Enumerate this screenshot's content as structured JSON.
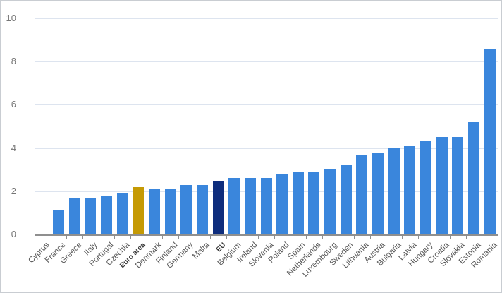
{
  "chart_data": {
    "type": "bar",
    "title": "",
    "xlabel": "",
    "ylabel": "",
    "categories": [
      "Cyprus",
      "France",
      "Greece",
      "Italy",
      "Portugal",
      "Czechia",
      "Euro area",
      "Denmark",
      "Finland",
      "Germany",
      "Malta",
      "EU",
      "Belgium",
      "Ireland",
      "Slovenia",
      "Poland",
      "Spain",
      "Netherlands",
      "Luxembourg",
      "Sweden",
      "Lithuania",
      "Austria",
      "Bulgaria",
      "Latvia",
      "Hungary",
      "Croatia",
      "Slovakia",
      "Estonia",
      "Romania"
    ],
    "values": [
      0,
      1.1,
      1.7,
      1.7,
      1.8,
      1.9,
      2.2,
      2.1,
      2.1,
      2.3,
      2.3,
      2.5,
      2.6,
      2.6,
      2.6,
      2.8,
      2.9,
      2.9,
      3.0,
      3.2,
      3.7,
      3.8,
      4.0,
      4.1,
      4.3,
      4.5,
      4.5,
      5.2,
      8.6
    ],
    "ylim": [
      0,
      10
    ],
    "yticks": [
      0,
      2,
      4,
      6,
      8,
      10
    ],
    "ytick_labels": [
      "0",
      "2",
      "4",
      "6",
      "8",
      "10"
    ],
    "grid": true,
    "legend": false,
    "bold_categories": [
      "Euro area",
      "EU"
    ],
    "highlight_colors": {
      "Euro area": "#c59a04",
      "EU": "#0e2d7d"
    }
  },
  "colors": {
    "bar_default": "#3a86dc",
    "bar_euro_area": "#c59a04",
    "bar_eu": "#0e2d7d",
    "gridline": "#dde4ef",
    "axis_line": "#8f8f8f",
    "ytick_label": "#757575",
    "category_label": "#595959",
    "highlight_label": "#3a3a3a",
    "border": "#c9cdd2",
    "background": "#ffffff"
  }
}
